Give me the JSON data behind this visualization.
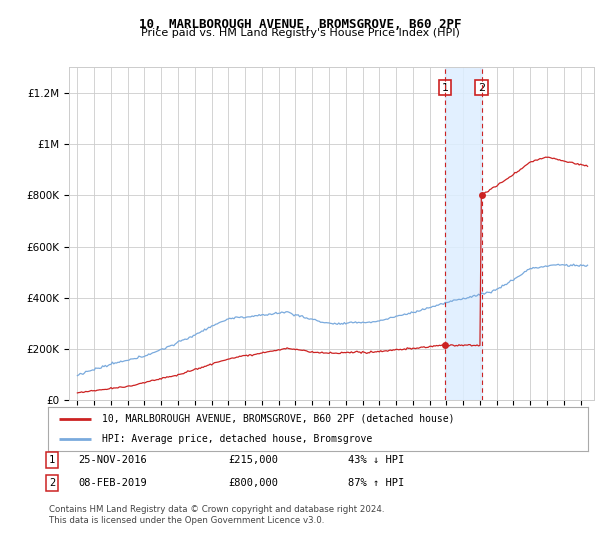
{
  "title": "10, MARLBOROUGH AVENUE, BROMSGROVE, B60 2PF",
  "subtitle": "Price paid vs. HM Land Registry's House Price Index (HPI)",
  "hpi_label": "HPI: Average price, detached house, Bromsgrove",
  "price_label": "10, MARLBOROUGH AVENUE, BROMSGROVE, B60 2PF (detached house)",
  "footer": "Contains HM Land Registry data © Crown copyright and database right 2024.\nThis data is licensed under the Open Government Licence v3.0.",
  "transaction1": {
    "label": "1",
    "date": "25-NOV-2016",
    "price": "£215,000",
    "pct": "43% ↓ HPI"
  },
  "transaction2": {
    "label": "2",
    "date": "08-FEB-2019",
    "price": "£800,000",
    "pct": "87% ↑ HPI"
  },
  "vline1_x": 2016.92,
  "vline2_x": 2019.1,
  "marker1_price": 215000,
  "marker2_price": 800000,
  "ylim": [
    0,
    1300000
  ],
  "xlim": [
    1994.5,
    2025.8
  ],
  "hpi_color": "#7aaadd",
  "price_color": "#cc2222",
  "shading_color": "#ddeeff",
  "grid_color": "#cccccc",
  "background_color": "#ffffff"
}
